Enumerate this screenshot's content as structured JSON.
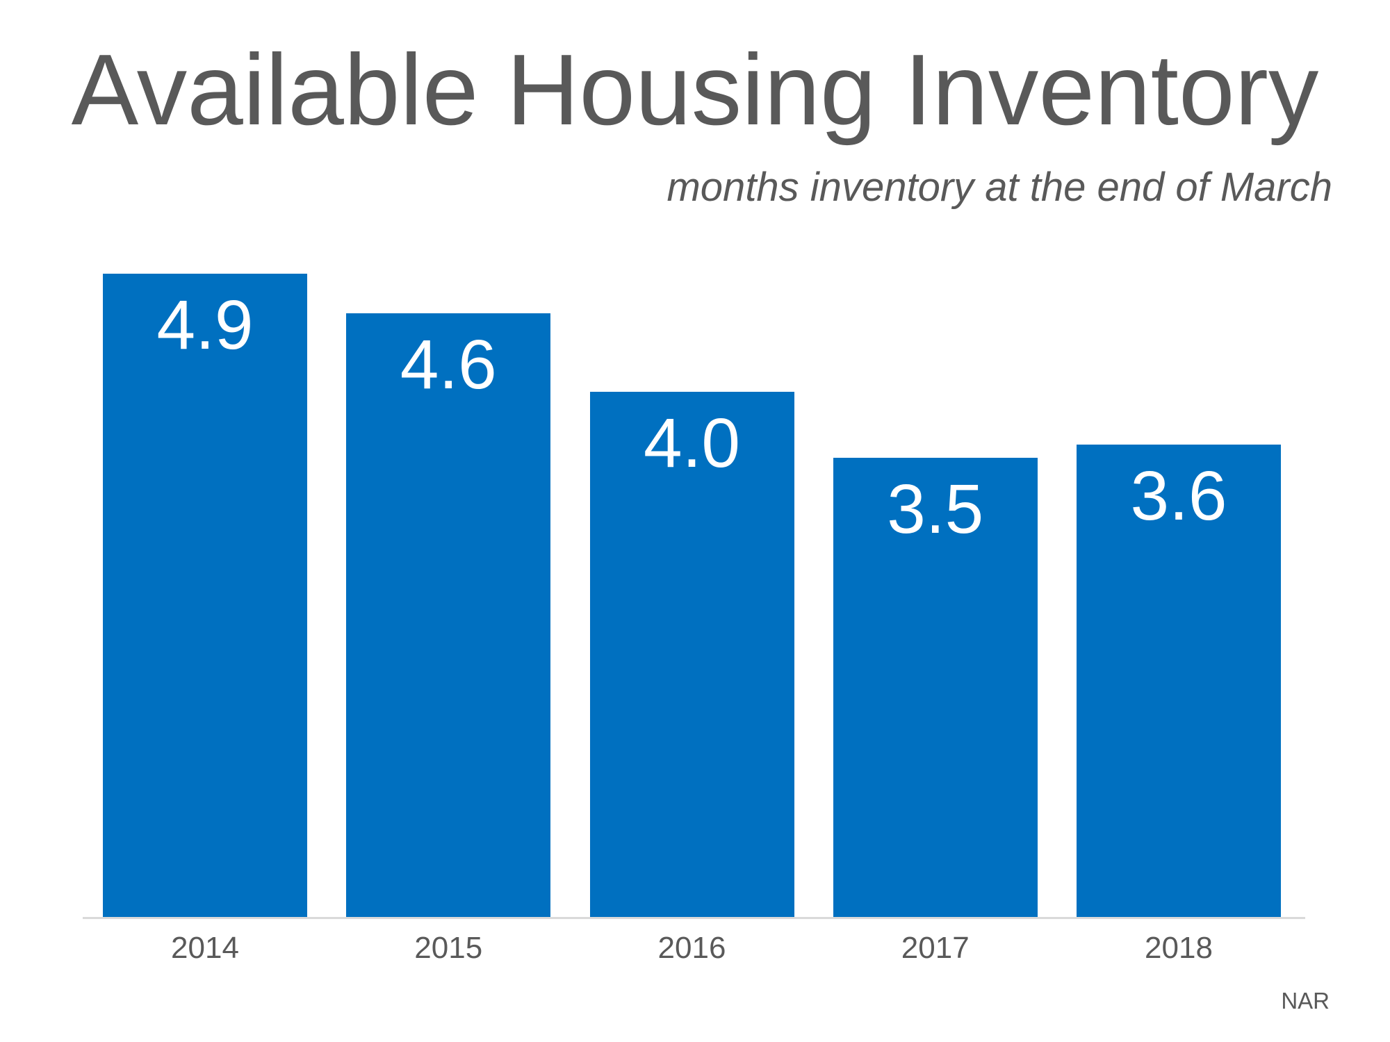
{
  "chart_data": {
    "type": "bar",
    "title": "Available Housing Inventory",
    "subtitle": "months inventory at the end of March",
    "source": "NAR",
    "categories": [
      "2014",
      "2015",
      "2016",
      "2017",
      "2018"
    ],
    "values": [
      4.9,
      4.6,
      4.0,
      3.5,
      3.6
    ],
    "value_labels": [
      "4.9",
      "4.6",
      "4.0",
      "3.5",
      "3.6"
    ],
    "xlabel": "",
    "ylabel": "",
    "ylim": [
      0,
      5.4
    ],
    "grid": false,
    "legend": "none",
    "value_label_position": "inside-top",
    "colors": {
      "bar": "#0070C0",
      "value_label": "#FFFFFF",
      "text": "#595959",
      "axis_line": "#D9D9D9",
      "background": "#FFFFFF"
    }
  }
}
